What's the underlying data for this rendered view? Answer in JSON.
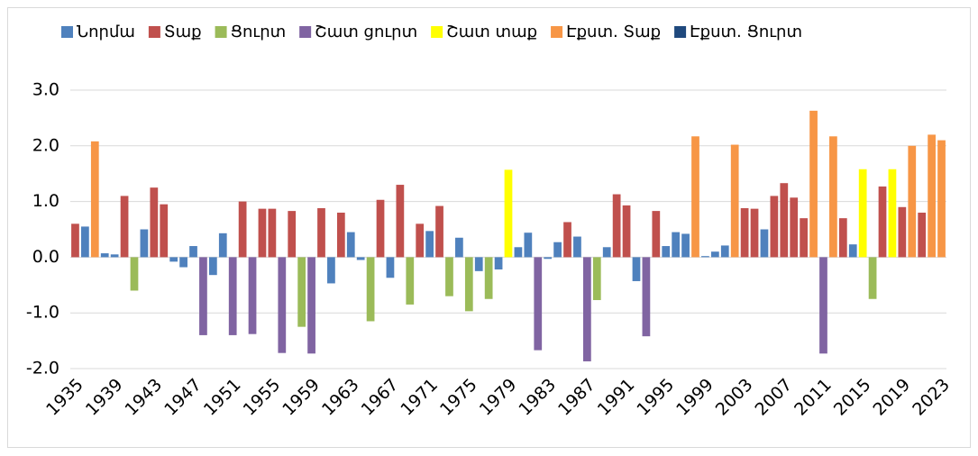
{
  "chart_data": {
    "type": "bar",
    "categories": [
      "1935",
      null,
      null,
      null,
      "1939",
      null,
      null,
      null,
      "1943",
      null,
      null,
      null,
      "1947",
      null,
      null,
      null,
      "1951",
      null,
      null,
      null,
      "1955",
      null,
      null,
      null,
      "1959",
      null,
      null,
      null,
      "1963",
      null,
      null,
      null,
      "1967",
      null,
      null,
      null,
      "1971",
      null,
      null,
      null,
      "1975",
      null,
      null,
      null,
      "1979",
      null,
      null,
      null,
      "1983",
      null,
      null,
      null,
      "1987",
      null,
      null,
      null,
      "1991",
      null,
      null,
      null,
      "1995",
      null,
      null,
      null,
      "1999",
      null,
      null,
      null,
      "2003",
      null,
      null,
      null,
      "2007",
      null,
      null,
      null,
      "2011",
      null,
      null,
      null,
      "2015",
      null,
      null,
      null,
      "2019",
      null,
      null,
      null,
      "2023"
    ],
    "series": [
      {
        "name": "Նորմա",
        "color": "#4f81bd",
        "values": [
          null,
          0.55,
          null,
          0.07,
          0.05,
          null,
          null,
          0.5,
          null,
          null,
          -0.08,
          -0.18,
          0.2,
          null,
          -0.32,
          0.43,
          null,
          null,
          null,
          null,
          null,
          null,
          null,
          null,
          null,
          null,
          -0.47,
          null,
          0.45,
          -0.05,
          null,
          null,
          -0.37,
          null,
          null,
          null,
          0.47,
          null,
          null,
          0.35,
          null,
          -0.25,
          null,
          -0.22,
          null,
          0.18,
          0.44,
          null,
          -0.03,
          0.27,
          null,
          0.37,
          null,
          null,
          0.18,
          null,
          null,
          -0.43,
          null,
          null,
          0.2,
          0.45,
          0.42,
          null,
          0.02,
          0.1,
          0.21,
          null,
          null,
          null,
          0.5,
          null,
          null,
          null,
          null,
          null,
          null,
          null,
          null,
          0.23,
          null,
          null,
          null,
          null,
          null,
          null,
          null,
          null,
          null
        ]
      },
      {
        "name": "Տաք",
        "color": "#c0504d",
        "values": [
          0.6,
          null,
          null,
          null,
          null,
          1.1,
          null,
          null,
          1.25,
          0.95,
          null,
          null,
          null,
          null,
          null,
          null,
          null,
          1.0,
          null,
          0.87,
          0.87,
          null,
          0.83,
          null,
          null,
          0.88,
          null,
          0.8,
          null,
          null,
          null,
          1.03,
          null,
          1.3,
          null,
          0.6,
          null,
          0.92,
          null,
          null,
          null,
          null,
          null,
          null,
          null,
          null,
          null,
          null,
          null,
          null,
          0.63,
          null,
          null,
          null,
          null,
          1.13,
          0.93,
          null,
          null,
          0.83,
          null,
          null,
          null,
          null,
          null,
          null,
          null,
          null,
          0.88,
          0.87,
          null,
          1.1,
          1.33,
          1.07,
          0.7,
          null,
          null,
          null,
          0.7,
          null,
          null,
          null,
          1.27,
          null,
          0.9,
          null,
          0.8,
          null,
          null
        ]
      },
      {
        "name": "Ցուրտ",
        "color": "#9bbb59",
        "values": [
          null,
          null,
          null,
          null,
          null,
          null,
          -0.6,
          null,
          null,
          null,
          null,
          null,
          null,
          null,
          null,
          null,
          null,
          null,
          null,
          null,
          null,
          null,
          null,
          -1.25,
          null,
          null,
          null,
          null,
          null,
          null,
          -1.15,
          null,
          null,
          null,
          -0.85,
          null,
          null,
          null,
          -0.7,
          null,
          -0.97,
          null,
          -0.75,
          null,
          null,
          null,
          null,
          null,
          null,
          null,
          null,
          null,
          null,
          -0.77,
          null,
          null,
          null,
          null,
          null,
          null,
          null,
          null,
          null,
          null,
          null,
          null,
          null,
          null,
          null,
          null,
          null,
          null,
          null,
          null,
          null,
          null,
          null,
          null,
          null,
          null,
          null,
          -0.75,
          null,
          null,
          null,
          null,
          null,
          null,
          null
        ]
      },
      {
        "name": "Շատ ցուրտ",
        "color": "#8064a2",
        "values": [
          null,
          null,
          null,
          null,
          null,
          null,
          null,
          null,
          null,
          null,
          null,
          null,
          null,
          -1.4,
          null,
          null,
          -1.4,
          null,
          -1.38,
          null,
          null,
          -1.72,
          null,
          null,
          -1.73,
          null,
          null,
          null,
          null,
          null,
          null,
          null,
          null,
          null,
          null,
          null,
          null,
          null,
          null,
          null,
          null,
          null,
          null,
          null,
          null,
          null,
          null,
          -1.67,
          null,
          null,
          null,
          null,
          -1.87,
          null,
          null,
          null,
          null,
          null,
          -1.42,
          null,
          null,
          null,
          null,
          null,
          null,
          null,
          null,
          null,
          null,
          null,
          null,
          null,
          null,
          null,
          null,
          null,
          -1.73,
          null,
          null,
          null,
          null,
          null,
          null,
          null,
          null,
          null,
          null,
          null,
          null
        ]
      },
      {
        "name": "Շատ տաք",
        "color": "#ffff00",
        "values": [
          null,
          null,
          null,
          null,
          null,
          null,
          null,
          null,
          null,
          null,
          null,
          null,
          null,
          null,
          null,
          null,
          null,
          null,
          null,
          null,
          null,
          null,
          null,
          null,
          null,
          null,
          null,
          null,
          null,
          null,
          null,
          null,
          null,
          null,
          null,
          null,
          null,
          null,
          null,
          null,
          null,
          null,
          null,
          null,
          1.57,
          null,
          null,
          null,
          null,
          null,
          null,
          null,
          null,
          null,
          null,
          null,
          null,
          null,
          null,
          null,
          null,
          null,
          null,
          null,
          null,
          null,
          null,
          null,
          null,
          null,
          null,
          null,
          null,
          null,
          null,
          null,
          null,
          null,
          null,
          null,
          1.58,
          null,
          null,
          1.58,
          null,
          null,
          null,
          null,
          null
        ]
      },
      {
        "name": "Էքստ. Տաք",
        "color": "#f79646",
        "values": [
          null,
          null,
          2.08,
          null,
          null,
          null,
          null,
          null,
          null,
          null,
          null,
          null,
          null,
          null,
          null,
          null,
          null,
          null,
          null,
          null,
          null,
          null,
          null,
          null,
          null,
          null,
          null,
          null,
          null,
          null,
          null,
          null,
          null,
          null,
          null,
          null,
          null,
          null,
          null,
          null,
          null,
          null,
          null,
          null,
          null,
          null,
          null,
          null,
          null,
          null,
          null,
          null,
          null,
          null,
          null,
          null,
          null,
          null,
          null,
          null,
          null,
          null,
          null,
          2.17,
          null,
          null,
          null,
          2.02,
          null,
          null,
          null,
          null,
          null,
          null,
          null,
          2.63,
          null,
          2.17,
          null,
          null,
          null,
          null,
          null,
          null,
          null,
          2.0,
          null,
          2.2,
          2.1
        ]
      },
      {
        "name": "Էքստ. Ցուրտ",
        "color": "#1f497d",
        "values": [
          null,
          null,
          null,
          null,
          null,
          null,
          null,
          null,
          null,
          null,
          null,
          null,
          null,
          null,
          null,
          null,
          null,
          null,
          null,
          null,
          null,
          null,
          null,
          null,
          null,
          null,
          null,
          null,
          null,
          null,
          null,
          null,
          null,
          null,
          null,
          null,
          null,
          null,
          null,
          null,
          null,
          null,
          null,
          null,
          null,
          null,
          null,
          null,
          null,
          null,
          null,
          null,
          null,
          null,
          null,
          null,
          null,
          null,
          null,
          null,
          null,
          null,
          null,
          null,
          null,
          null,
          null,
          null,
          null,
          null,
          null,
          null,
          null,
          null,
          null,
          null,
          null,
          null,
          null,
          null,
          null,
          null,
          null,
          null,
          null,
          null,
          null,
          null,
          null
        ]
      }
    ],
    "ylim": [
      -2,
      3
    ],
    "yticks": [
      {
        "value": -2,
        "label": "-2.0"
      },
      {
        "value": -1,
        "label": "-1.0"
      },
      {
        "value": 0,
        "label": "0.0"
      },
      {
        "value": 1,
        "label": "1.0"
      },
      {
        "value": 2,
        "label": "2.0"
      },
      {
        "value": 3,
        "label": "3.0"
      }
    ],
    "grid": true,
    "legend": "top"
  }
}
